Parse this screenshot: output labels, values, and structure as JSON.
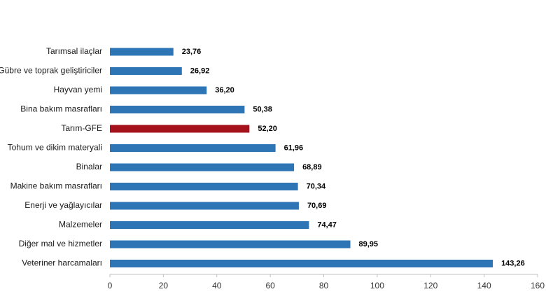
{
  "chart_data": {
    "type": "bar",
    "orientation": "horizontal",
    "title": "",
    "xlabel": "",
    "ylabel": "",
    "xlim": [
      0,
      160
    ],
    "x_ticks": [
      0,
      20,
      40,
      60,
      80,
      100,
      120,
      140,
      160
    ],
    "grid": false,
    "legend": "none",
    "default_color": "#2e75b6",
    "highlight_color": "#a5121c",
    "highlight_category": "Tarım-GFE",
    "categories": [
      "Tarımsal ilaçlar",
      "Gübre ve toprak geliştiriciler",
      "Hayvan yemi",
      "Bina bakım masrafları",
      "Tarım-GFE",
      "Tohum ve dikim materyali",
      "Binalar",
      "Makine bakım masrafları",
      "Enerji  ve yağlayıcılar",
      "Malzemeler",
      "Diğer mal ve hizmetler",
      "Veteriner harcamaları"
    ],
    "values": [
      23.76,
      26.92,
      36.2,
      50.38,
      52.2,
      61.96,
      68.89,
      70.34,
      70.69,
      74.47,
      89.95,
      143.26
    ],
    "value_labels": [
      "23,76",
      "26,92",
      "36,20",
      "50,38",
      "52,20",
      "61,96",
      "68,89",
      "70,34",
      "70,69",
      "74,47",
      "89,95",
      "143,26"
    ]
  }
}
